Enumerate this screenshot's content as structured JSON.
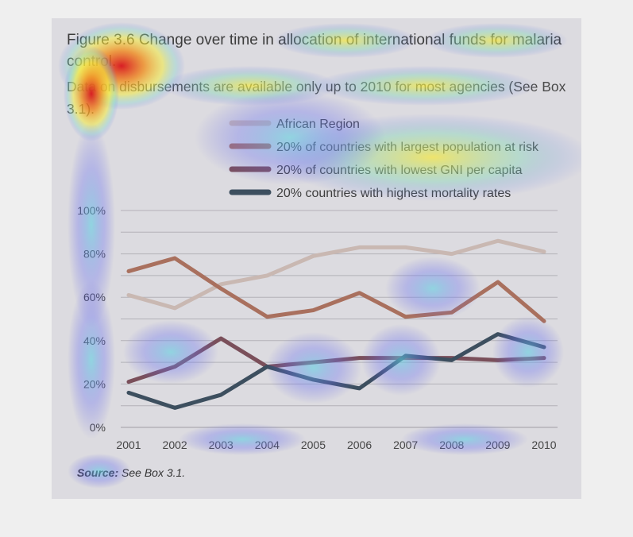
{
  "figure": {
    "title": "Figure 3.6 Change over time in allocation of international funds for malaria control.",
    "subtitle": "Data on disbursements are available only up to 2010 for most agencies (See Box 3.1).",
    "source_prefix": "Source:",
    "source_text": " See Box 3.1."
  },
  "colors": {
    "background": "#dcdbe0",
    "grid": "#b3b2b8",
    "overlay": "attention heatmap"
  },
  "chart_data": {
    "type": "line",
    "title": "Figure 3.6 Change over time in allocation of international funds for malaria control.",
    "x": [
      "2001",
      "2002",
      "2003",
      "2004",
      "2005",
      "2006",
      "2007",
      "2008",
      "2009",
      "2010"
    ],
    "y_ticks": [
      "0%",
      "20%",
      "40%",
      "60%",
      "80%",
      "100%"
    ],
    "ylim": [
      0,
      100
    ],
    "grid": true,
    "legend_position": "top",
    "series": [
      {
        "name": "African Region",
        "color": "#c9b8b2",
        "values": [
          61,
          55,
          66,
          70,
          79,
          83,
          83,
          80,
          86,
          81
        ]
      },
      {
        "name": "20% of countries with largest population at risk",
        "color": "#a9705e",
        "values": [
          72,
          78,
          64,
          51,
          54,
          62,
          51,
          53,
          67,
          49
        ]
      },
      {
        "name": "20% of countries with lowest GNI per capita",
        "color": "#7a4f5a",
        "values": [
          21,
          28,
          41,
          28,
          30,
          32,
          32,
          32,
          31,
          32
        ]
      },
      {
        "name": "20% countries with highest mortality rates",
        "color": "#3d4f5f",
        "values": [
          16,
          9,
          15,
          28,
          22,
          18,
          33,
          31,
          43,
          37
        ]
      }
    ]
  }
}
